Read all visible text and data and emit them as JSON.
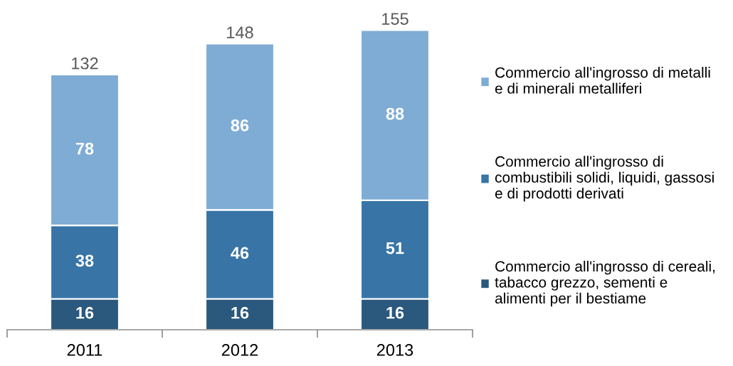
{
  "chart_data": {
    "type": "bar",
    "stacked": true,
    "categories": [
      "2011",
      "2012",
      "2013"
    ],
    "series": [
      {
        "name": "Commercio all'ingrosso di cereali,\ntabacco grezzo, sementi e\nalimenti per il bestiame",
        "color": "#2b587d",
        "values": [
          16,
          16,
          16
        ]
      },
      {
        "name": "Commercio all'ingrosso di\ncombustibili solidi, liquidi, gassosi\ne di prodotti derivati",
        "color": "#3874a6",
        "values": [
          38,
          46,
          51
        ]
      },
      {
        "name": "Commercio all'ingrosso di metalli\ne di minerali metalliferi",
        "color": "#7facd4",
        "values": [
          78,
          86,
          88
        ]
      }
    ],
    "data_labels": true,
    "totals": [
      "132",
      "148",
      "155"
    ],
    "legend": "right",
    "tick_labels": "x"
  }
}
